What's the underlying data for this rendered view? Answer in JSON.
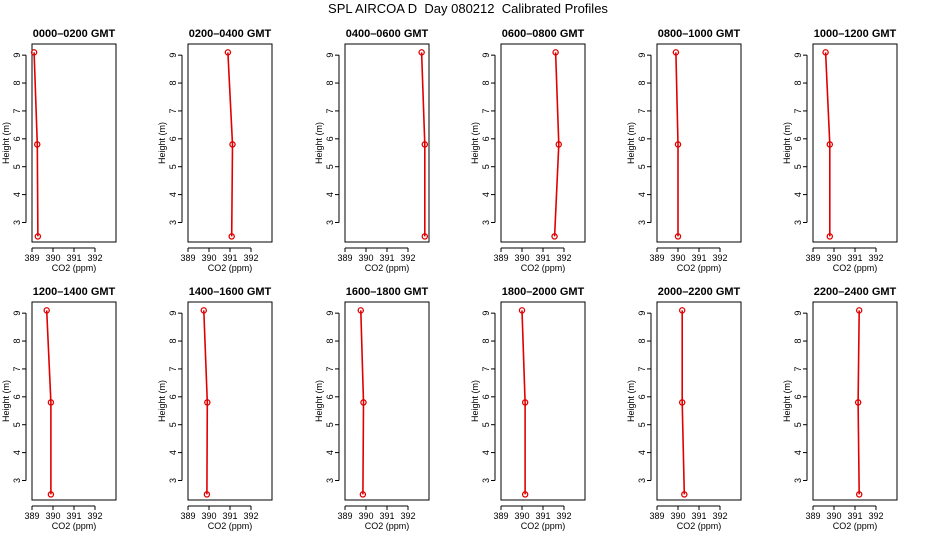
{
  "title": "SPL AIRCOA D  Day 080212  Calibrated Profiles",
  "colors": {
    "profile": "#e00000",
    "axis": "#000000",
    "background": "#ffffff"
  },
  "chart_data": [
    {
      "type": "line",
      "title": "0000–0200 GMT",
      "xlabel": "CO2 (ppm)",
      "ylabel": "Height (m)",
      "xlim": [
        389,
        393
      ],
      "ylim": [
        2.3,
        9.4
      ],
      "xticks": [
        389,
        390,
        391,
        392
      ],
      "yticks": [
        3,
        4,
        5,
        6,
        7,
        8,
        9
      ],
      "series": [
        {
          "x": [
            389.28,
            389.25,
            389.1
          ],
          "y": [
            2.5,
            5.8,
            9.1
          ]
        }
      ]
    },
    {
      "type": "line",
      "title": "0200–0400 GMT",
      "xlabel": "CO2 (ppm)",
      "ylabel": "Height (m)",
      "xlim": [
        389,
        393
      ],
      "ylim": [
        2.3,
        9.4
      ],
      "xticks": [
        389,
        390,
        391,
        392
      ],
      "yticks": [
        3,
        4,
        5,
        6,
        7,
        8,
        9
      ],
      "series": [
        {
          "x": [
            391.08,
            391.12,
            390.9
          ],
          "y": [
            2.5,
            5.8,
            9.1
          ]
        }
      ]
    },
    {
      "type": "line",
      "title": "0400–0600 GMT",
      "xlabel": "CO2 (ppm)",
      "ylabel": "Height (m)",
      "xlim": [
        389,
        393
      ],
      "ylim": [
        2.3,
        9.4
      ],
      "xticks": [
        389,
        390,
        391,
        392
      ],
      "yticks": [
        3,
        4,
        5,
        6,
        7,
        8,
        9
      ],
      "series": [
        {
          "x": [
            392.8,
            392.8,
            392.65
          ],
          "y": [
            2.5,
            5.8,
            9.1
          ]
        }
      ]
    },
    {
      "type": "line",
      "title": "0600–0800 GMT",
      "xlabel": "CO2 (ppm)",
      "ylabel": "Height (m)",
      "xlim": [
        389,
        393
      ],
      "ylim": [
        2.3,
        9.4
      ],
      "xticks": [
        389,
        390,
        391,
        392
      ],
      "yticks": [
        3,
        4,
        5,
        6,
        7,
        8,
        9
      ],
      "series": [
        {
          "x": [
            391.55,
            391.75,
            391.6
          ],
          "y": [
            2.5,
            5.8,
            9.1
          ]
        }
      ]
    },
    {
      "type": "line",
      "title": "0800–1000 GMT",
      "xlabel": "CO2 (ppm)",
      "ylabel": "Height (m)",
      "xlim": [
        389,
        393
      ],
      "ylim": [
        2.3,
        9.4
      ],
      "xticks": [
        389,
        390,
        391,
        392
      ],
      "yticks": [
        3,
        4,
        5,
        6,
        7,
        8,
        9
      ],
      "series": [
        {
          "x": [
            390.0,
            390.0,
            389.9
          ],
          "y": [
            2.5,
            5.8,
            9.1
          ]
        }
      ]
    },
    {
      "type": "line",
      "title": "1000–1200 GMT",
      "xlabel": "CO2 (ppm)",
      "ylabel": "Height (m)",
      "xlim": [
        389,
        393
      ],
      "ylim": [
        2.3,
        9.4
      ],
      "xticks": [
        389,
        390,
        391,
        392
      ],
      "yticks": [
        3,
        4,
        5,
        6,
        7,
        8,
        9
      ],
      "series": [
        {
          "x": [
            389.8,
            389.8,
            389.6
          ],
          "y": [
            2.5,
            5.8,
            9.1
          ]
        }
      ]
    },
    {
      "type": "line",
      "title": "1200–1400 GMT",
      "xlabel": "CO2 (ppm)",
      "ylabel": "Height (m)",
      "xlim": [
        389,
        393
      ],
      "ylim": [
        2.3,
        9.4
      ],
      "xticks": [
        389,
        390,
        391,
        392
      ],
      "yticks": [
        3,
        4,
        5,
        6,
        7,
        8,
        9
      ],
      "series": [
        {
          "x": [
            389.9,
            389.9,
            389.7
          ],
          "y": [
            2.5,
            5.8,
            9.1
          ]
        }
      ]
    },
    {
      "type": "line",
      "title": "1400–1600 GMT",
      "xlabel": "CO2 (ppm)",
      "ylabel": "Height (m)",
      "xlim": [
        389,
        393
      ],
      "ylim": [
        2.3,
        9.4
      ],
      "xticks": [
        389,
        390,
        391,
        392
      ],
      "yticks": [
        3,
        4,
        5,
        6,
        7,
        8,
        9
      ],
      "series": [
        {
          "x": [
            389.9,
            389.92,
            389.75
          ],
          "y": [
            2.5,
            5.8,
            9.1
          ]
        }
      ]
    },
    {
      "type": "line",
      "title": "1600–1800 GMT",
      "xlabel": "CO2 (ppm)",
      "ylabel": "Height (m)",
      "xlim": [
        389,
        393
      ],
      "ylim": [
        2.3,
        9.4
      ],
      "xticks": [
        389,
        390,
        391,
        392
      ],
      "yticks": [
        3,
        4,
        5,
        6,
        7,
        8,
        9
      ],
      "series": [
        {
          "x": [
            389.85,
            389.88,
            389.75
          ],
          "y": [
            2.5,
            5.8,
            9.1
          ]
        }
      ]
    },
    {
      "type": "line",
      "title": "1800–2000 GMT",
      "xlabel": "CO2 (ppm)",
      "ylabel": "Height (m)",
      "xlim": [
        389,
        393
      ],
      "ylim": [
        2.3,
        9.4
      ],
      "xticks": [
        389,
        390,
        391,
        392
      ],
      "yticks": [
        3,
        4,
        5,
        6,
        7,
        8,
        9
      ],
      "series": [
        {
          "x": [
            390.15,
            390.15,
            390.0
          ],
          "y": [
            2.5,
            5.8,
            9.1
          ]
        }
      ]
    },
    {
      "type": "line",
      "title": "2000–2200 GMT",
      "xlabel": "CO2 (ppm)",
      "ylabel": "Height (m)",
      "xlim": [
        389,
        393
      ],
      "ylim": [
        2.3,
        9.4
      ],
      "xticks": [
        389,
        390,
        391,
        392
      ],
      "yticks": [
        3,
        4,
        5,
        6,
        7,
        8,
        9
      ],
      "series": [
        {
          "x": [
            390.3,
            390.2,
            390.2
          ],
          "y": [
            2.5,
            5.8,
            9.1
          ]
        }
      ]
    },
    {
      "type": "line",
      "title": "2200–2400 GMT",
      "xlabel": "CO2 (ppm)",
      "ylabel": "Height (m)",
      "xlim": [
        389,
        393
      ],
      "ylim": [
        2.3,
        9.4
      ],
      "xticks": [
        389,
        390,
        391,
        392
      ],
      "yticks": [
        3,
        4,
        5,
        6,
        7,
        8,
        9
      ],
      "series": [
        {
          "x": [
            391.2,
            391.15,
            391.2
          ],
          "y": [
            2.5,
            5.8,
            9.1
          ]
        }
      ]
    }
  ]
}
